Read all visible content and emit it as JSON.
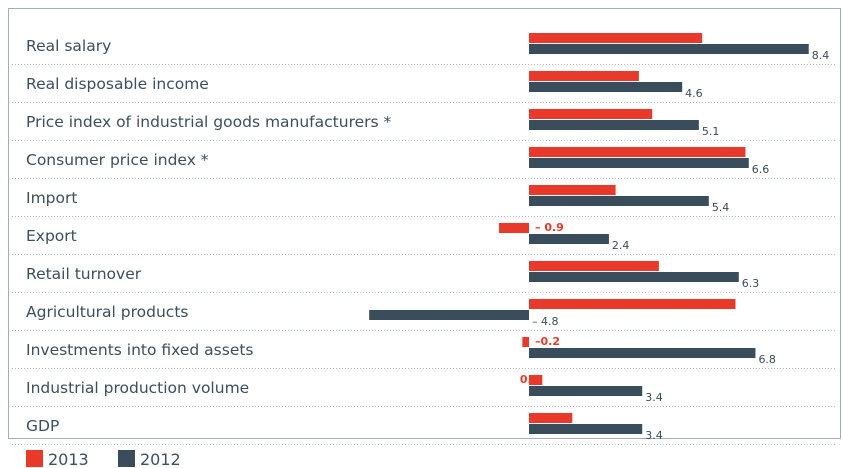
{
  "chart_data": {
    "type": "bar",
    "orientation": "horizontal",
    "categories": [
      "Real salary",
      "Real disposable income",
      "Price index of industrial goods manufacturers *",
      "Consumer price index *",
      "Import",
      "Export",
      "Retail turnover",
      "Agricultural products",
      "Investments into fixed assets",
      "Industrial production volume",
      "GDP"
    ],
    "series": [
      {
        "name": "2013",
        "color": "#e8392a",
        "values": [
          5.2,
          3.3,
          3.7,
          6.5,
          2.6,
          -0.9,
          3.9,
          6.2,
          -0.2,
          0.4,
          1.3
        ],
        "labels": [
          "5.2",
          "3.3",
          "3.7",
          "6.5",
          "2.6",
          "– 0.9",
          "3.9",
          "6.2",
          "–0.2",
          "0.4",
          "1.3"
        ]
      },
      {
        "name": "2012",
        "color": "#3a4d5c",
        "values": [
          8.4,
          4.6,
          5.1,
          6.6,
          5.4,
          2.4,
          6.3,
          -4.8,
          6.8,
          3.4,
          3.4
        ],
        "labels": [
          "8.4",
          "4.6",
          "5.1",
          "6.6",
          "5.4",
          "2.4",
          "6.3",
          "– 4.8",
          "6.8",
          "3.4",
          "3.4"
        ]
      }
    ],
    "title": "",
    "xlabel": "",
    "ylabel": "",
    "legend_position": "bottom-left"
  }
}
